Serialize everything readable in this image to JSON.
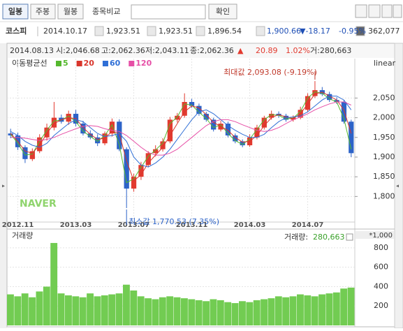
{
  "toolbar": {
    "buttons": [
      "일봉",
      "주봉",
      "월봉"
    ],
    "compare_label": "종목비교",
    "confirm": "확인"
  },
  "quote": {
    "name": "코스피",
    "date": "2014.10.17",
    "open": "1,923.51",
    "high": "1,923.51",
    "low": "1,896.54",
    "close": "1,900.66",
    "change": "▼-18.17",
    "change_pct": "-0.95%",
    "volume": "362,077"
  },
  "chart_data": [
    {
      "type": "candlestick",
      "info_line": [
        "2014.08.13",
        "시:2,046.68",
        "고:2,062.36",
        "저:2,043.11",
        "종:2,062.36",
        "▲",
        "20.89",
        "1.02%",
        "거:280,663"
      ],
      "legend_title": "이동평균선",
      "scale_label": "linear",
      "up_color": "#e23a2f",
      "down_color": "#2d63c8",
      "categories": [
        null,
        "2012.11",
        null,
        null,
        null,
        null,
        null,
        null,
        null,
        "2013.03",
        null,
        null,
        null,
        null,
        null,
        null,
        null,
        "2013.07",
        null,
        null,
        null,
        null,
        null,
        null,
        null,
        "2013.11",
        null,
        null,
        null,
        null,
        null,
        null,
        null,
        "2014.03",
        null,
        null,
        null,
        null,
        null,
        null,
        null,
        "2014.07",
        null,
        null,
        null,
        null,
        null,
        null
      ],
      "open": [
        1960,
        1955,
        1925,
        1895,
        1915,
        1950,
        1975,
        2000,
        1990,
        2010,
        1985,
        1960,
        1950,
        1935,
        1960,
        1990,
        1920,
        1820,
        1850,
        1880,
        1910,
        1920,
        1940,
        1995,
        2005,
        2040,
        2030,
        2010,
        1995,
        1970,
        1985,
        1955,
        1940,
        1930,
        1950,
        1975,
        2000,
        2010,
        2005,
        1995,
        2000,
        2020,
        2055,
        2070,
        2060,
        2045,
        2040,
        1990
      ],
      "high": [
        1972,
        1962,
        1930,
        1922,
        1958,
        1985,
        2040,
        2008,
        2018,
        2020,
        1992,
        1968,
        1958,
        1965,
        1998,
        1996,
        1925,
        1858,
        1888,
        1915,
        1930,
        1948,
        2002,
        2012,
        2062,
        2048,
        2036,
        2015,
        2000,
        1992,
        1990,
        1960,
        1945,
        1958,
        1982,
        2005,
        2018,
        2016,
        2010,
        2006,
        2028,
        2062,
        2093.08,
        2078,
        2066,
        2052,
        2045,
        1995
      ],
      "low": [
        1948,
        1918,
        1885,
        1890,
        1910,
        1942,
        1968,
        1985,
        1982,
        1978,
        1955,
        1945,
        1928,
        1930,
        1952,
        1915,
        1770.53,
        1812,
        1842,
        1874,
        1902,
        1914,
        1935,
        1988,
        2000,
        2025,
        2005,
        1990,
        1965,
        1965,
        1950,
        1935,
        1925,
        1926,
        1945,
        1970,
        1995,
        2000,
        1990,
        1990,
        1996,
        2015,
        2050,
        2055,
        2040,
        2035,
        1985,
        1900
      ],
      "close": [
        1955,
        1925,
        1895,
        1915,
        1950,
        1975,
        2000,
        1990,
        2010,
        1985,
        1960,
        1950,
        1935,
        1960,
        1990,
        1920,
        1820,
        1850,
        1880,
        1910,
        1920,
        1940,
        1995,
        2005,
        2040,
        2030,
        2010,
        1995,
        1970,
        1985,
        1955,
        1940,
        1930,
        1950,
        1975,
        2000,
        2010,
        2005,
        1995,
        2000,
        2020,
        2055,
        2070,
        2060,
        2045,
        2040,
        1990,
        1910
      ],
      "series": [
        {
          "name": "5",
          "color": "#55b82e",
          "values": [
            1958,
            1935,
            1905,
            1908,
            1940,
            1968,
            1992,
            1994,
            2004,
            1990,
            1966,
            1952,
            1940,
            1955,
            1982,
            1932,
            1835,
            1845,
            1874,
            1902,
            1918,
            1936,
            1985,
            2002,
            2035,
            2032,
            2014,
            1998,
            1975,
            1982,
            1960,
            1942,
            1932,
            1946,
            1970,
            1995,
            2008,
            2006,
            1997,
            1999,
            2016,
            2050,
            2066,
            2062,
            2048,
            2040,
            1998,
            1920
          ]
        },
        {
          "name": "20",
          "color": "#d9362c",
          "values": [
            1960,
            1940,
            1915,
            1910,
            1930,
            1960,
            1985,
            1995,
            2000,
            1998,
            1975,
            1958,
            1945,
            1948,
            1965,
            1960,
            1890,
            1840,
            1855,
            1885,
            1905,
            1925,
            1955,
            1985,
            2015,
            2030,
            2025,
            2008,
            1988,
            1978,
            1968,
            1950,
            1938,
            1940,
            1955,
            1980,
            2000,
            2008,
            2002,
            1998,
            2010,
            2035,
            2060,
            2065,
            2055,
            2045,
            2020,
            1960
          ]
        },
        {
          "name": "60",
          "color": "#2f6fd6",
          "values": [
            1965,
            1955,
            1940,
            1930,
            1925,
            1935,
            1955,
            1970,
            1985,
            1995,
            1990,
            1975,
            1960,
            1952,
            1955,
            1960,
            1940,
            1900,
            1880,
            1875,
            1885,
            1900,
            1920,
            1945,
            1970,
            1995,
            2015,
            2020,
            2010,
            1995,
            1980,
            1968,
            1958,
            1950,
            1950,
            1958,
            1975,
            1990,
            2000,
            2002,
            2005,
            2015,
            2030,
            2045,
            2055,
            2055,
            2045,
            2020
          ]
        },
        {
          "name": "120",
          "color": "#e64fa6",
          "values": [
            1950,
            1950,
            1948,
            1945,
            1942,
            1945,
            1950,
            1958,
            1965,
            1972,
            1978,
            1980,
            1978,
            1972,
            1968,
            1965,
            1955,
            1940,
            1925,
            1912,
            1905,
            1905,
            1910,
            1920,
            1935,
            1950,
            1965,
            1980,
            1990,
            1995,
            1995,
            1990,
            1982,
            1975,
            1968,
            1965,
            1968,
            1975,
            1985,
            1995,
            2002,
            2010,
            2020,
            2028,
            2035,
            2040,
            2040,
            2032
          ]
        }
      ],
      "annotations": [
        {
          "text": "최대값 2,093.08 (-9.19%)",
          "value": 2093.08,
          "color": "#c0392b"
        },
        {
          "text": "최소값 1,770.53 (7.35%)",
          "value": 1770.53,
          "color": "#2d63c8"
        }
      ],
      "ylim": [
        1735,
        2150
      ],
      "yticks": [
        {
          "value": 1800,
          "label": "1,800"
        },
        {
          "value": 1850,
          "label": "1,850"
        },
        {
          "value": 1900,
          "label": "1,900"
        },
        {
          "value": 1950,
          "label": "1,950"
        },
        {
          "value": 2000,
          "label": "2,000"
        },
        {
          "value": 2050,
          "label": "2,050"
        }
      ],
      "grid": true
    },
    {
      "type": "bar",
      "title": "거래량",
      "current_label": "거래량:",
      "current_value": "280,663",
      "unit_label": "*1,000",
      "color": "#72cc52",
      "values": [
        320,
        300,
        330,
        290,
        350,
        400,
        850,
        330,
        310,
        300,
        290,
        330,
        300,
        310,
        320,
        330,
        420,
        360,
        300,
        280,
        270,
        290,
        300,
        290,
        280,
        270,
        260,
        250,
        270,
        260,
        240,
        230,
        250,
        240,
        260,
        270,
        280,
        300,
        290,
        300,
        320,
        310,
        300,
        320,
        330,
        340,
        380,
        390
      ],
      "ylim": [
        0,
        900
      ],
      "yticks": [
        200,
        400,
        600,
        800
      ],
      "grid": true
    }
  ]
}
